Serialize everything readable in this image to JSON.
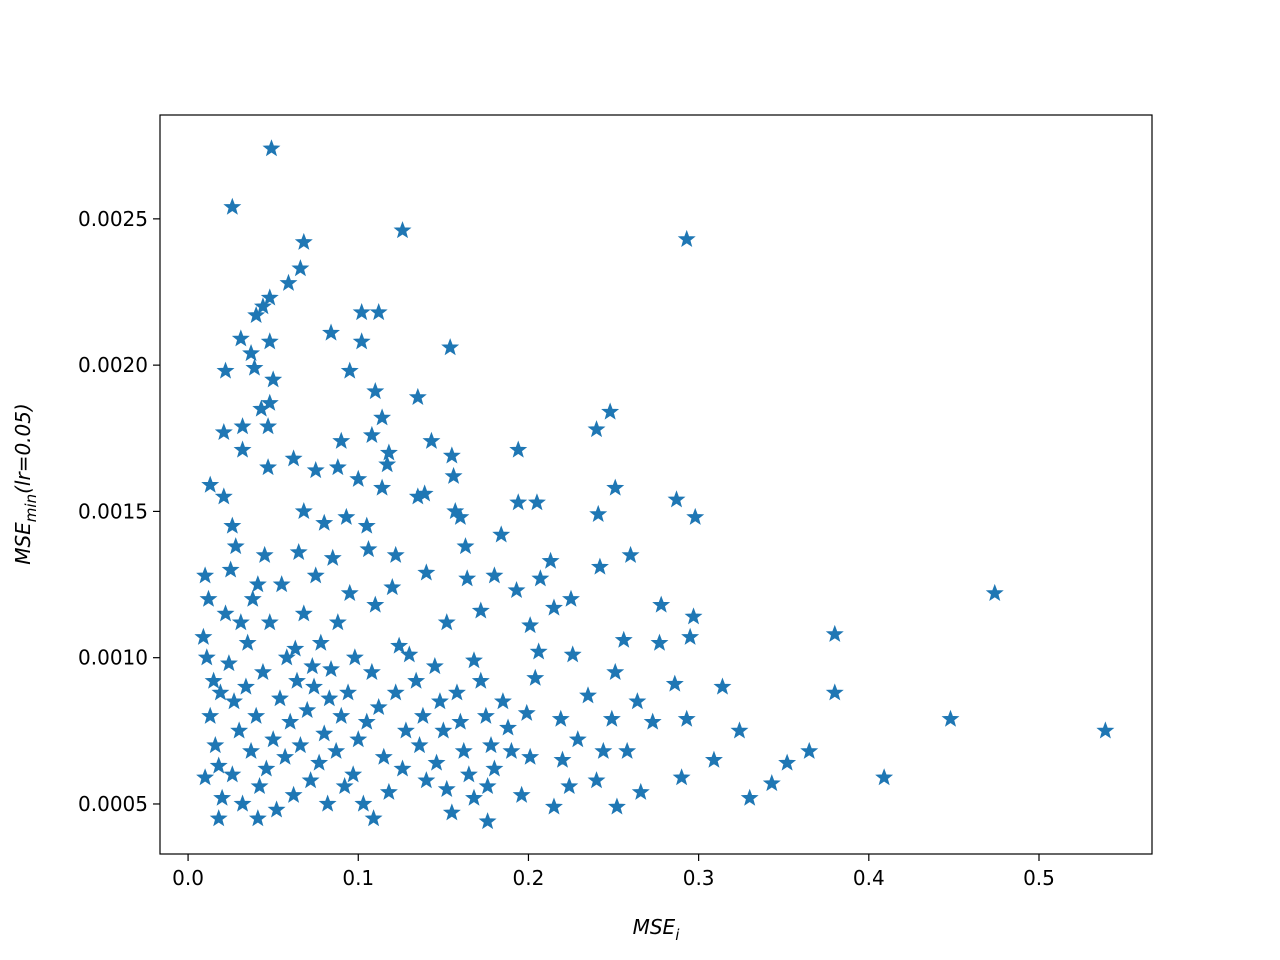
{
  "chart_data": {
    "type": "scatter",
    "xlabel": [
      "MSE",
      "i"
    ],
    "ylabel": [
      "MSE",
      "min",
      "(lr=0.05)"
    ],
    "color": "#1f77b4",
    "marker": "star",
    "xlim": [
      -0.0165,
      0.5664
    ],
    "ylim": [
      0.000329,
      0.002855
    ],
    "xticks": [
      {
        "value": 0,
        "label": "0.0"
      },
      0.1,
      0.2,
      0.3,
      0.4,
      0.5
    ],
    "yticks": [
      0.0005,
      {
        "value": 0.001,
        "label": "0.0010"
      },
      0.0015,
      {
        "value": 0.002,
        "label": "0.0020"
      },
      0.0025
    ],
    "x": [
      0.049,
      0.026,
      0.126,
      0.293,
      0.068,
      0.066,
      0.059,
      0.048,
      0.044,
      0.04,
      0.102,
      0.112,
      0.084,
      0.031,
      0.048,
      0.102,
      0.154,
      0.037,
      0.022,
      0.039,
      0.095,
      0.05,
      0.11,
      0.135,
      0.248,
      0.24,
      0.048,
      0.043,
      0.114,
      0.032,
      0.021,
      0.047,
      0.09,
      0.143,
      0.108,
      0.194,
      0.032,
      0.118,
      0.155,
      0.117,
      0.062,
      0.088,
      0.075,
      0.047,
      0.1,
      0.156,
      0.013,
      0.114,
      0.251,
      0.287,
      0.205,
      0.194,
      0.139,
      0.135,
      0.021,
      0.157,
      0.241,
      0.298,
      0.16,
      0.068,
      0.093,
      0.08,
      0.105,
      0.026,
      0.184,
      0.163,
      0.213,
      0.26,
      0.242,
      0.122,
      0.14,
      0.164,
      0.18,
      0.207,
      0.193,
      0.474,
      0.225,
      0.278,
      0.215,
      0.172,
      0.297,
      0.152,
      0.201,
      0.38,
      0.256,
      0.295,
      0.277,
      0.206,
      0.226,
      0.168,
      0.251,
      0.204,
      0.286,
      0.314,
      0.235,
      0.38,
      0.264,
      0.249,
      0.293,
      0.273,
      0.448,
      0.199,
      0.219,
      0.324,
      0.539,
      0.229,
      0.244,
      0.258,
      0.365,
      0.309,
      0.352,
      0.22,
      0.201,
      0.409,
      0.29,
      0.24,
      0.224,
      0.343,
      0.266,
      0.33,
      0.196,
      0.215,
      0.252,
      0.176,
      0.155,
      0.018,
      0.041,
      0.109,
      0.01,
      0.012,
      0.009,
      0.011,
      0.015,
      0.013,
      0.01,
      0.016,
      0.018,
      0.02,
      0.022,
      0.025,
      0.028,
      0.024,
      0.027,
      0.03,
      0.026,
      0.032,
      0.035,
      0.038,
      0.034,
      0.04,
      0.037,
      0.042,
      0.045,
      0.048,
      0.044,
      0.05,
      0.046,
      0.052,
      0.055,
      0.058,
      0.054,
      0.06,
      0.057,
      0.062,
      0.065,
      0.068,
      0.064,
      0.07,
      0.066,
      0.072,
      0.075,
      0.078,
      0.074,
      0.08,
      0.077,
      0.082,
      0.085,
      0.088,
      0.084,
      0.09,
      0.087,
      0.092,
      0.095,
      0.098,
      0.094,
      0.1,
      0.097,
      0.103,
      0.106,
      0.11,
      0.108,
      0.112,
      0.115,
      0.118,
      0.12,
      0.124,
      0.122,
      0.128,
      0.126,
      0.13,
      0.134,
      0.138,
      0.136,
      0.14,
      0.145,
      0.148,
      0.15,
      0.146,
      0.152,
      0.158,
      0.16,
      0.162,
      0.165,
      0.168,
      0.172,
      0.175,
      0.178,
      0.18,
      0.176,
      0.185,
      0.188,
      0.19,
      0.019,
      0.031,
      0.063,
      0.083,
      0.105,
      0.041,
      0.073
    ],
    "values": [
      0.00274,
      0.00254,
      0.00246,
      0.00243,
      0.00242,
      0.00233,
      0.00228,
      0.00223,
      0.0022,
      0.00217,
      0.00218,
      0.00218,
      0.00211,
      0.00209,
      0.00208,
      0.00208,
      0.00206,
      0.00204,
      0.00198,
      0.00199,
      0.00198,
      0.00195,
      0.00191,
      0.00189,
      0.00184,
      0.00178,
      0.00187,
      0.00185,
      0.00182,
      0.00179,
      0.00177,
      0.00179,
      0.00174,
      0.00174,
      0.00176,
      0.00171,
      0.00171,
      0.0017,
      0.00169,
      0.00166,
      0.00168,
      0.00165,
      0.00164,
      0.00165,
      0.00161,
      0.00162,
      0.00159,
      0.00158,
      0.00158,
      0.00154,
      0.00153,
      0.00153,
      0.00156,
      0.00155,
      0.00155,
      0.0015,
      0.00149,
      0.00148,
      0.00148,
      0.0015,
      0.00148,
      0.00146,
      0.00145,
      0.00145,
      0.00142,
      0.00138,
      0.00133,
      0.00135,
      0.00131,
      0.00135,
      0.00129,
      0.00127,
      0.00128,
      0.00127,
      0.00123,
      0.00122,
      0.0012,
      0.00118,
      0.00117,
      0.00116,
      0.00114,
      0.00112,
      0.00111,
      0.00108,
      0.00106,
      0.00107,
      0.00105,
      0.00102,
      0.00101,
      0.00099,
      0.00095,
      0.00093,
      0.00091,
      0.0009,
      0.00087,
      0.00088,
      0.00085,
      0.00079,
      0.00079,
      0.00078,
      0.00079,
      0.00081,
      0.00079,
      0.00075,
      0.00075,
      0.00072,
      0.00068,
      0.00068,
      0.00068,
      0.00065,
      0.00064,
      0.00065,
      0.00066,
      0.00059,
      0.00059,
      0.00058,
      0.00056,
      0.00057,
      0.00054,
      0.00052,
      0.00053,
      0.00049,
      0.00049,
      0.00044,
      0.00047,
      0.00045,
      0.00045,
      0.00045,
      0.00128,
      0.0012,
      0.00107,
      0.001,
      0.00092,
      0.0008,
      0.00059,
      0.0007,
      0.00063,
      0.00052,
      0.00115,
      0.0013,
      0.00138,
      0.00098,
      0.00085,
      0.00075,
      0.0006,
      0.0005,
      0.00105,
      0.0012,
      0.0009,
      0.0008,
      0.00068,
      0.00056,
      0.00135,
      0.00112,
      0.00095,
      0.00072,
      0.00062,
      0.00048,
      0.00125,
      0.001,
      0.00086,
      0.00078,
      0.00066,
      0.00053,
      0.00136,
      0.00115,
      0.00092,
      0.00082,
      0.0007,
      0.00058,
      0.00128,
      0.00105,
      0.0009,
      0.00074,
      0.00064,
      0.0005,
      0.00134,
      0.00112,
      0.00096,
      0.0008,
      0.00068,
      0.00056,
      0.00122,
      0.001,
      0.00088,
      0.00072,
      0.0006,
      0.0005,
      0.00137,
      0.00118,
      0.00095,
      0.00083,
      0.00066,
      0.00054,
      0.00124,
      0.00104,
      0.00088,
      0.00075,
      0.00062,
      0.00101,
      0.00092,
      0.0008,
      0.0007,
      0.00058,
      0.00097,
      0.00085,
      0.00075,
      0.00064,
      0.00055,
      0.00088,
      0.00078,
      0.00068,
      0.0006,
      0.00052,
      0.00092,
      0.0008,
      0.0007,
      0.00062,
      0.00056,
      0.00085,
      0.00076,
      0.00068,
      0.00088,
      0.00112,
      0.00103,
      0.00086,
      0.00078,
      0.00125,
      0.00097
    ]
  }
}
